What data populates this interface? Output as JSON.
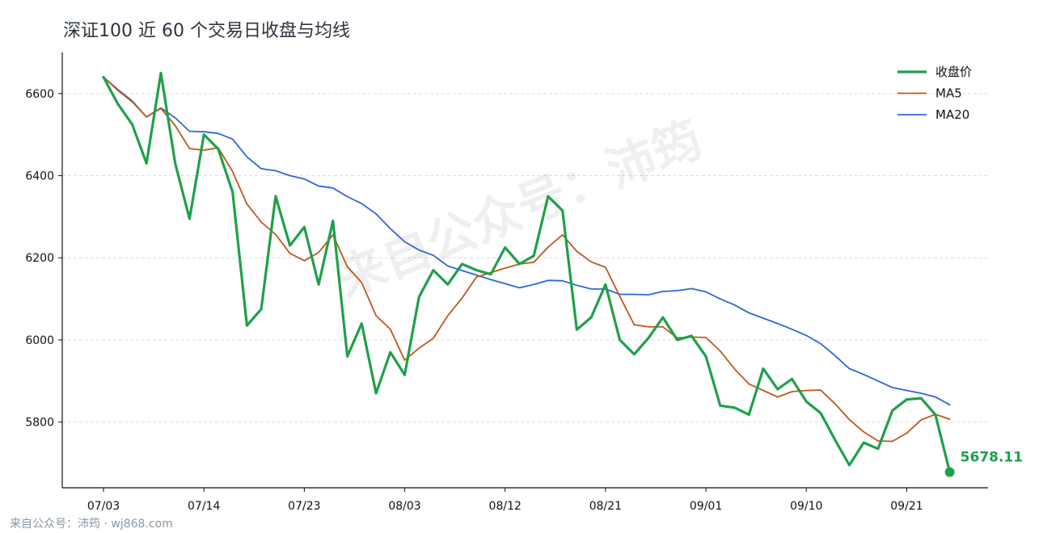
{
  "title": "深证100 近 60 个交易日收盘与均线",
  "footer": "来自公众号：沛筠 · wj868.com",
  "watermark": "来自公众号：沛筠",
  "colors": {
    "close": "#1fa04b",
    "ma5": "#c0571a",
    "ma20": "#2f66d6",
    "axis": "#111111",
    "grid": "#dddddd"
  },
  "chart_data": {
    "type": "line",
    "title": "深证100 近 60 个交易日收盘与均线",
    "xlabel": "",
    "ylabel": "",
    "ylim": [
      5640,
      6700
    ],
    "yticks": [
      5800,
      6000,
      6200,
      6400,
      6600
    ],
    "x_tick_labels": [
      "07/03",
      "07/14",
      "07/23",
      "08/03",
      "08/12",
      "08/21",
      "09/01",
      "09/10",
      "09/21"
    ],
    "x_tick_indices": [
      0,
      7,
      14,
      21,
      28,
      35,
      42,
      49,
      56
    ],
    "grid": "horizontal dashed",
    "legend_position": "top-right",
    "last_value_label": "5678.11",
    "series": [
      {
        "name": "收盘价",
        "values": [
          6640,
          6575,
          6525,
          6430,
          6650,
          6430,
          6295,
          6500,
          6465,
          6360,
          6035,
          6075,
          6350,
          6230,
          6275,
          6135,
          6290,
          5960,
          6040,
          5870,
          5970,
          5915,
          6105,
          6170,
          6135,
          6185,
          6170,
          6160,
          6225,
          6185,
          6205,
          6350,
          6315,
          6025,
          6055,
          6135,
          6000,
          5965,
          6005,
          6055,
          6000,
          6010,
          5960,
          5840,
          5835,
          5818,
          5930,
          5880,
          5905,
          5850,
          5822,
          5757,
          5695,
          5750,
          5735,
          5828,
          5855,
          5858,
          5818,
          5678.11
        ]
      },
      {
        "name": "MA5",
        "values": [
          6640,
          6608,
          6580,
          6543,
          6564,
          6522,
          6466,
          6462,
          6468,
          6410,
          6331,
          6287,
          6257,
          6211,
          6193,
          6213,
          6256,
          6178,
          6140,
          6059,
          6026,
          5951,
          5980,
          6004,
          6059,
          6102,
          6153,
          6164,
          6175,
          6185,
          6189,
          6226,
          6256,
          6216,
          6190,
          6177,
          6106,
          6037,
          6032,
          6032,
          6005,
          6007,
          6006,
          5973,
          5929,
          5893,
          5877,
          5861,
          5874,
          5877,
          5878,
          5845,
          5806,
          5776,
          5754,
          5753,
          5773,
          5805,
          5819,
          5807
        ]
      },
      {
        "name": "MA20",
        "values": [
          6640,
          6610,
          6582,
          6543,
          6565,
          6541,
          6508,
          6507,
          6503,
          6489,
          6446,
          6417,
          6412,
          6400,
          6392,
          6375,
          6370,
          6349,
          6332,
          6307,
          6271,
          6239,
          6219,
          6206,
          6180,
          6169,
          6158,
          6147,
          6137,
          6127,
          6135,
          6145,
          6144,
          6133,
          6124,
          6124,
          6111,
          6111,
          6110,
          6118,
          6120,
          6125,
          6117,
          6100,
          6085,
          6066,
          6053,
          6040,
          6026,
          6011,
          5991,
          5962,
          5930,
          5916,
          5900,
          5884,
          5877,
          5870,
          5861,
          5842
        ]
      }
    ]
  }
}
